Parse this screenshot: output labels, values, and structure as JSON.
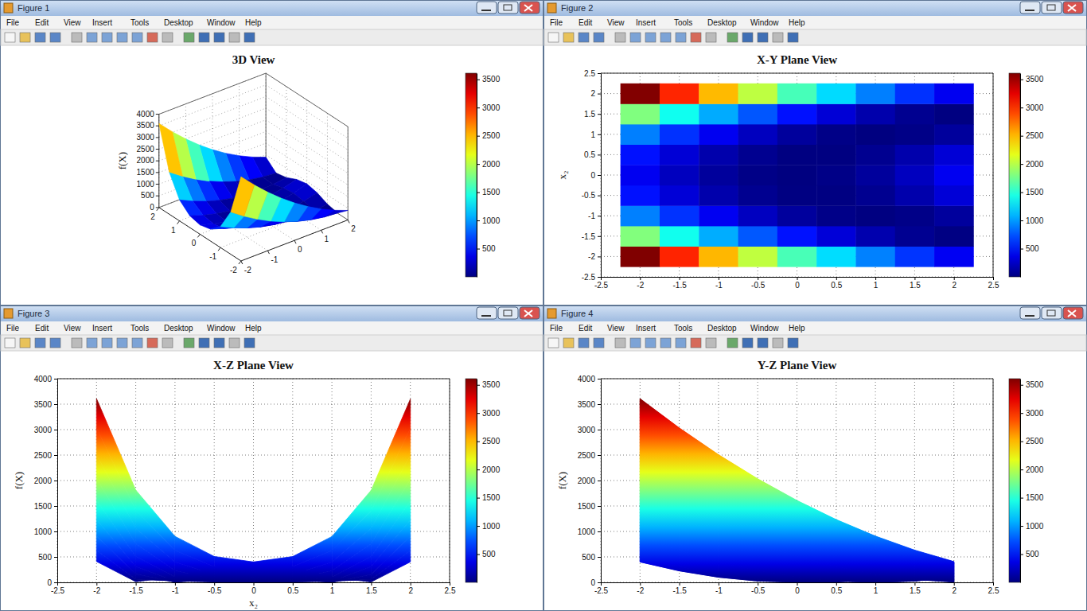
{
  "windows": [
    {
      "title": "Figure 1",
      "menu": [
        "File",
        "Edit",
        "View",
        "Insert",
        "Tools",
        "Desktop",
        "Window",
        "Help"
      ]
    },
    {
      "title": "Figure 2",
      "menu": [
        "File",
        "Edit",
        "View",
        "Insert",
        "Tools",
        "Desktop",
        "Window",
        "Help"
      ]
    },
    {
      "title": "Figure 3",
      "menu": [
        "File",
        "Edit",
        "View",
        "Insert",
        "Tools",
        "Desktop",
        "Window",
        "Help"
      ]
    },
    {
      "title": "Figure 4",
      "menu": [
        "File",
        "Edit",
        "View",
        "Insert",
        "Tools",
        "Desktop",
        "Window",
        "Help"
      ]
    }
  ],
  "chart_data": [
    {
      "type": "surface",
      "title": "3D View",
      "zlabel": "f(X)",
      "x": [
        -2,
        -1.5,
        -1,
        -0.5,
        0,
        0.5,
        1,
        1.5,
        2
      ],
      "y": [
        -2,
        -1.5,
        -1,
        -0.5,
        0,
        0.5,
        1,
        1.5,
        2
      ],
      "z": [
        [
          3609,
          3034,
          2509,
          2034,
          1609,
          1234,
          909,
          634,
          409
        ],
        [
          1813,
          1413,
          1063,
          763,
          513,
          313,
          163,
          63,
          13
        ],
        [
          904,
          629,
          404,
          229,
          104,
          29,
          4,
          29,
          104
        ],
        [
          509,
          309,
          159,
          59,
          9,
          9,
          59,
          159,
          309
        ],
        [
          401,
          226,
          101,
          26,
          1,
          26,
          101,
          226,
          401
        ],
        [
          507,
          307,
          157,
          57,
          7,
          7,
          57,
          157,
          307
        ],
        [
          900,
          625,
          400,
          225,
          100,
          25,
          0,
          25,
          100
        ],
        [
          1807,
          1407,
          1057,
          757,
          507,
          307,
          157,
          57,
          7
        ],
        [
          3601,
          3026,
          2501,
          2026,
          1601,
          1226,
          901,
          626,
          401
        ]
      ],
      "xlim": [
        -2,
        2
      ],
      "xticks": [
        -2,
        -1,
        0,
        1,
        2
      ],
      "ylim": [
        -2,
        2
      ],
      "yticks": [
        -2,
        -1,
        0,
        1,
        2
      ],
      "zlim": [
        0,
        4000
      ],
      "zticks": [
        0,
        500,
        1000,
        1500,
        2000,
        2500,
        3000,
        3500,
        4000
      ],
      "colorbar": {
        "range": [
          0,
          3609
        ],
        "ticks": [
          500,
          1000,
          1500,
          2000,
          2500,
          3000,
          3500
        ]
      },
      "grid": true
    },
    {
      "type": "heatmap",
      "title": "X-Y Plane View",
      "ylabel": "x₂",
      "x": [
        -2,
        -1.5,
        -1,
        -0.5,
        0,
        0.5,
        1,
        1.5,
        2
      ],
      "y": [
        -2,
        -1.5,
        -1,
        -0.5,
        0,
        0.5,
        1,
        1.5,
        2
      ],
      "z": [
        [
          3609,
          3034,
          2509,
          2034,
          1609,
          1234,
          909,
          634,
          409
        ],
        [
          1813,
          1413,
          1063,
          763,
          513,
          313,
          163,
          63,
          13
        ],
        [
          904,
          629,
          404,
          229,
          104,
          29,
          4,
          29,
          104
        ],
        [
          509,
          309,
          159,
          59,
          9,
          9,
          59,
          159,
          309
        ],
        [
          401,
          226,
          101,
          26,
          1,
          26,
          101,
          226,
          401
        ],
        [
          507,
          307,
          157,
          57,
          7,
          7,
          57,
          157,
          307
        ],
        [
          900,
          625,
          400,
          225,
          100,
          25,
          0,
          25,
          100
        ],
        [
          1807,
          1407,
          1057,
          757,
          507,
          307,
          157,
          57,
          7
        ],
        [
          3601,
          3026,
          2501,
          2026,
          1601,
          1226,
          901,
          626,
          401
        ]
      ],
      "xlim": [
        -2.5,
        2.5
      ],
      "xticks": [
        -2.5,
        -2,
        -1.5,
        -1,
        -0.5,
        0,
        0.5,
        1,
        1.5,
        2,
        2.5
      ],
      "ylim": [
        -2.5,
        2.5
      ],
      "yticks": [
        -2.5,
        -2,
        -1.5,
        -1,
        -0.5,
        0,
        0.5,
        1,
        1.5,
        2,
        2.5
      ],
      "colorbar": {
        "range": [
          0,
          3609
        ],
        "ticks": [
          500,
          1000,
          1500,
          2000,
          2500,
          3000,
          3500
        ]
      },
      "grid": true
    },
    {
      "type": "projection",
      "title": "X-Z Plane View",
      "xlabel": "x₂",
      "ylabel": "f(X)",
      "x": [
        -2,
        -1.5,
        -1,
        -0.5,
        0,
        0.5,
        1,
        1.5,
        2
      ],
      "z": [
        [
          3609,
          1813,
          904,
          509,
          401,
          507,
          900,
          1807,
          3601
        ],
        [
          3034,
          1413,
          629,
          309,
          226,
          307,
          625,
          1407,
          3026
        ],
        [
          2509,
          1063,
          404,
          159,
          101,
          157,
          400,
          1057,
          2501
        ],
        [
          2034,
          763,
          229,
          59,
          26,
          57,
          225,
          757,
          2026
        ],
        [
          1609,
          513,
          104,
          9,
          1,
          7,
          100,
          507,
          1601
        ],
        [
          1234,
          313,
          29,
          9,
          26,
          7,
          25,
          307,
          1226
        ],
        [
          909,
          163,
          4,
          59,
          101,
          57,
          0,
          157,
          901
        ],
        [
          634,
          63,
          29,
          159,
          226,
          157,
          25,
          57,
          626
        ],
        [
          409,
          13,
          104,
          309,
          401,
          307,
          100,
          7,
          401
        ]
      ],
      "xlim": [
        -2.5,
        2.5
      ],
      "xticks": [
        -2.5,
        -2,
        -1.5,
        -1,
        -0.5,
        0,
        0.5,
        1,
        1.5,
        2,
        2.5
      ],
      "ylim": [
        0,
        4000
      ],
      "yticks": [
        0,
        500,
        1000,
        1500,
        2000,
        2500,
        3000,
        3500,
        4000
      ],
      "colorbar": {
        "range": [
          0,
          3609
        ],
        "ticks": [
          500,
          1000,
          1500,
          2000,
          2500,
          3000,
          3500
        ]
      },
      "grid": true
    },
    {
      "type": "projection",
      "title": "Y-Z Plane View",
      "ylabel": "f(X)",
      "x": [
        -2,
        -1.5,
        -1,
        -0.5,
        0,
        0.5,
        1,
        1.5,
        2
      ],
      "z": [
        [
          3609,
          3034,
          2509,
          2034,
          1609,
          1234,
          909,
          634,
          409
        ],
        [
          1813,
          1413,
          1063,
          763,
          513,
          313,
          163,
          63,
          13
        ],
        [
          904,
          629,
          404,
          229,
          104,
          29,
          4,
          29,
          104
        ],
        [
          509,
          309,
          159,
          59,
          9,
          9,
          59,
          159,
          309
        ],
        [
          401,
          226,
          101,
          26,
          1,
          26,
          101,
          226,
          401
        ],
        [
          507,
          307,
          157,
          57,
          7,
          7,
          57,
          157,
          307
        ],
        [
          900,
          625,
          400,
          225,
          100,
          25,
          0,
          25,
          100
        ],
        [
          1807,
          1407,
          1057,
          757,
          507,
          307,
          157,
          57,
          7
        ],
        [
          3601,
          3026,
          2501,
          2026,
          1601,
          1226,
          901,
          626,
          401
        ]
      ],
      "xlim": [
        -2.5,
        2.5
      ],
      "xticks": [
        -2.5,
        -2,
        -1.5,
        -1,
        -0.5,
        0,
        0.5,
        1,
        1.5,
        2,
        2.5
      ],
      "ylim": [
        0,
        4000
      ],
      "yticks": [
        0,
        500,
        1000,
        1500,
        2000,
        2500,
        3000,
        3500,
        4000
      ],
      "colorbar": {
        "range": [
          0,
          3609
        ],
        "ticks": [
          500,
          1000,
          1500,
          2000,
          2500,
          3000,
          3500
        ]
      },
      "grid": true
    }
  ]
}
